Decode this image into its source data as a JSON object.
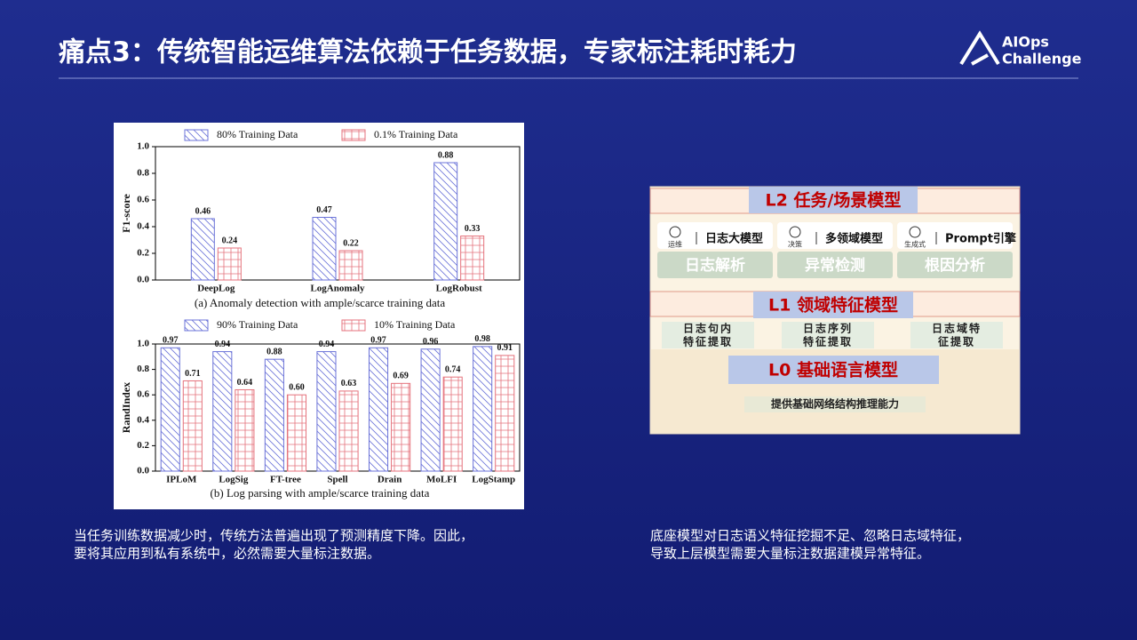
{
  "header": {
    "title": "痛点3：传统智能运维算法依赖于任务数据，专家标注耗时耗力",
    "logo": [
      "AIOps",
      "Challenge"
    ]
  },
  "chart_data": [
    {
      "type": "bar",
      "y_label": "F1-score",
      "caption": "(a) Anomaly detection with ample/scarce training data",
      "categories": [
        "DeepLog",
        "LogAnomaly",
        "LogRobust"
      ],
      "series": [
        {
          "name": "80% Training Data",
          "color": "#6b73d8",
          "values": [
            0.46,
            0.47,
            0.88
          ],
          "value_labels": [
            "0.46",
            "0.47",
            "0.88"
          ]
        },
        {
          "name": "0.1% Training Data",
          "color": "#e5727c",
          "values": [
            0.24,
            0.22,
            0.33
          ],
          "value_labels": [
            "0.24",
            "0.22",
            "0.33"
          ]
        }
      ],
      "ylim": [
        0,
        1
      ],
      "yticks": [
        {
          "value": 0,
          "label": "0.0"
        },
        {
          "value": 0.2,
          "label": "0.2"
        },
        {
          "value": 0.4,
          "label": "0.4"
        },
        {
          "value": 0.6,
          "label": "0.6"
        },
        {
          "value": 0.8,
          "label": "0.8"
        },
        {
          "value": 1,
          "label": "1.0"
        }
      ]
    },
    {
      "type": "bar",
      "y_label": "RandIndex",
      "caption": "(b) Log parsing with ample/scarce training data",
      "categories": [
        "IPLoM",
        "LogSig",
        "FT-tree",
        "Spell",
        "Drain",
        "MoLFI",
        "LogStamp"
      ],
      "series": [
        {
          "name": "90% Training Data",
          "color": "#6b73d8",
          "values": [
            0.97,
            0.94,
            0.88,
            0.94,
            0.97,
            0.96,
            0.98
          ],
          "value_labels": [
            "0.97",
            "0.94",
            "0.88",
            "0.94",
            "0.97",
            "0.96",
            "0.98"
          ]
        },
        {
          "name": "10% Training Data",
          "color": "#e5727c",
          "values": [
            0.71,
            0.64,
            0.6,
            0.63,
            0.69,
            0.74,
            0.91
          ],
          "value_labels": [
            "0.71",
            "0.64",
            "0.60",
            "0.63",
            "0.69",
            "0.74",
            "0.91"
          ]
        }
      ],
      "ylim": [
        0,
        1
      ],
      "yticks": [
        {
          "value": 0,
          "label": "0.0"
        },
        {
          "value": 0.2,
          "label": "0.2"
        },
        {
          "value": 0.4,
          "label": "0.4"
        },
        {
          "value": 0.6,
          "label": "0.6"
        },
        {
          "value": 0.8,
          "label": "0.8"
        },
        {
          "value": 1,
          "label": "1.0"
        }
      ]
    }
  ],
  "diagram": {
    "l2": {
      "title": "L2 任务/场景模型",
      "tools": [
        {
          "icon": "运维",
          "label": "日志大模型"
        },
        {
          "icon": "决策",
          "label": "多领域模型"
        },
        {
          "icon": "生成式",
          "label": "Prompt引擎"
        }
      ],
      "tasks": [
        "日志解析",
        "异常检测",
        "根因分析"
      ]
    },
    "l1": {
      "title": "L1 领域特征模型",
      "features": [
        [
          "日志句内",
          "特征提取"
        ],
        [
          "日志序列",
          "特征提取"
        ],
        [
          "日志域特",
          "征提取"
        ]
      ]
    },
    "l0": {
      "title": "L0 基础语言模型",
      "note": "提供基础网络结构推理能力"
    }
  },
  "captions": {
    "left": [
      "当任务训练数据减少时，传统方法普遍出现了预测精度下降。因此，",
      "要将其应用到私有系统中，必然需要大量标注数据。"
    ],
    "right": [
      "底座模型对日志语义特征挖掘不足、忽略日志域特征，",
      "导致上层模型需要大量标注数据建模异常特征。"
    ]
  }
}
